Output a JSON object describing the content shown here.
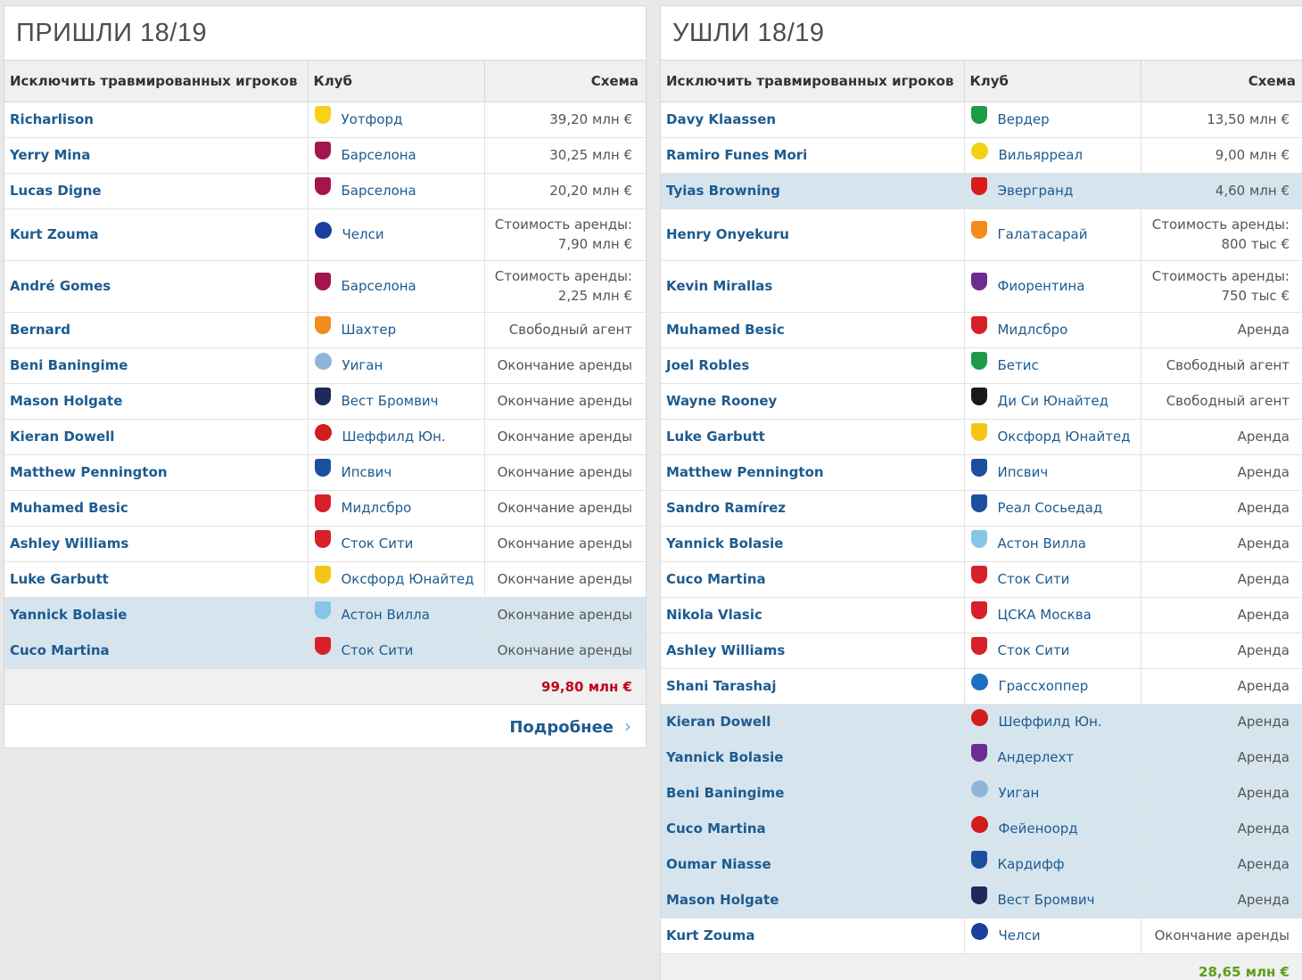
{
  "incoming": {
    "title": "ПРИШЛИ 18/19",
    "headers": [
      "Исключить травмированных игроков",
      "Клуб",
      "Схема"
    ],
    "rows": [
      {
        "player": "Richarlison",
        "club": "Уотфорд",
        "fee": "39,20 млн €",
        "crest": "#f6d21b",
        "hl": false
      },
      {
        "player": "Yerry Mina",
        "club": "Барселона",
        "fee": "30,25 млн €",
        "crest": "#a5154d",
        "hl": false
      },
      {
        "player": "Lucas Digne",
        "club": "Барселона",
        "fee": "20,20 млн €",
        "crest": "#a5154d",
        "hl": false
      },
      {
        "player": "Kurt Zouma",
        "club": "Челси",
        "fee": "Стоимость аренды: 7,90 млн €",
        "crest": "#1a3fa0",
        "hl": false,
        "tall": true,
        "round": true
      },
      {
        "player": "André Gomes",
        "club": "Барселона",
        "fee": "Стоимость аренды: 2,25 млн €",
        "crest": "#a5154d",
        "hl": false,
        "tall": true
      },
      {
        "player": "Bernard",
        "club": "Шахтер",
        "fee": "Свободный агент",
        "crest": "#f28c1a",
        "hl": false
      },
      {
        "player": "Beni Baningime",
        "club": "Уиган",
        "fee": "Окончание аренды",
        "crest": "#8fb6d8",
        "hl": false,
        "round": true
      },
      {
        "player": "Mason Holgate",
        "club": "Вест Бромвич",
        "fee": "Окончание аренды",
        "crest": "#1c2b5a",
        "hl": false
      },
      {
        "player": "Kieran Dowell",
        "club": "Шеффилд Юн.",
        "fee": "Окончание аренды",
        "crest": "#d21d1d",
        "hl": false,
        "round": true
      },
      {
        "player": "Matthew Pennington",
        "club": "Ипсвич",
        "fee": "Окончание аренды",
        "crest": "#1b4fa0",
        "hl": false
      },
      {
        "player": "Muhamed Besic",
        "club": "Мидлсбро",
        "fee": "Окончание аренды",
        "crest": "#d8202a",
        "hl": false
      },
      {
        "player": "Ashley Williams",
        "club": "Сток Сити",
        "fee": "Окончание аренды",
        "crest": "#d8202a",
        "hl": false
      },
      {
        "player": "Luke Garbutt",
        "club": "Оксфорд Юнайтед",
        "fee": "Окончание аренды",
        "crest": "#f3c515",
        "hl": false
      },
      {
        "player": "Yannick Bolasie",
        "club": "Астон Вилла",
        "fee": "Окончание аренды",
        "crest": "#86c5e8",
        "hl": true
      },
      {
        "player": "Cuco Martina",
        "club": "Сток Сити",
        "fee": "Окончание аренды",
        "crest": "#d8202a",
        "hl": true
      }
    ],
    "total": "99,80 млн €",
    "more_label": "Подробнее",
    "more_icon": "chevron-right-icon"
  },
  "outgoing": {
    "title": "УШЛИ 18/19",
    "headers": [
      "Исключить травмированных игроков",
      "Клуб",
      "Схема"
    ],
    "rows": [
      {
        "player": "Davy Klaassen",
        "club": "Вердер",
        "fee": "13,50 млн €",
        "crest": "#1e9b48",
        "hl": false
      },
      {
        "player": "Ramiro Funes Mori",
        "club": "Вильярреал",
        "fee": "9,00 млн €",
        "crest": "#f1d212",
        "hl": false,
        "round": true
      },
      {
        "player": "Tyias Browning",
        "club": "Эвергранд",
        "fee": "4,60 млн €",
        "crest": "#d91b1b",
        "hl": true
      },
      {
        "player": "Henry Onyekuru",
        "club": "Галатасарай",
        "fee": "Стоимость аренды: 800 тыс €",
        "crest": "#f28c1a",
        "hl": false,
        "tall": true
      },
      {
        "player": "Kevin Mirallas",
        "club": "Фиорентина",
        "fee": "Стоимость аренды: 750 тыс €",
        "crest": "#6b2d8f",
        "hl": false,
        "tall": true
      },
      {
        "player": "Muhamed Besic",
        "club": "Мидлсбро",
        "fee": "Аренда",
        "crest": "#d8202a",
        "hl": false
      },
      {
        "player": "Joel Robles",
        "club": "Бетис",
        "fee": "Свободный агент",
        "crest": "#1e9b48",
        "hl": false
      },
      {
        "player": "Wayne Rooney",
        "club": "Ди Си Юнайтед",
        "fee": "Свободный агент",
        "crest": "#1a1a1a",
        "hl": false
      },
      {
        "player": "Luke Garbutt",
        "club": "Оксфорд Юнайтед",
        "fee": "Аренда",
        "crest": "#f3c515",
        "hl": false
      },
      {
        "player": "Matthew Pennington",
        "club": "Ипсвич",
        "fee": "Аренда",
        "crest": "#1b4fa0",
        "hl": false
      },
      {
        "player": "Sandro Ramírez",
        "club": "Реал Сосьедад",
        "fee": "Аренда",
        "crest": "#1b4fa0",
        "hl": false
      },
      {
        "player": "Yannick Bolasie",
        "club": "Астон Вилла",
        "fee": "Аренда",
        "crest": "#86c5e8",
        "hl": false
      },
      {
        "player": "Cuco Martina",
        "club": "Сток Сити",
        "fee": "Аренда",
        "crest": "#d8202a",
        "hl": false
      },
      {
        "player": "Nikola Vlasic",
        "club": "ЦСКА Москва",
        "fee": "Аренда",
        "crest": "#d8202a",
        "hl": false
      },
      {
        "player": "Ashley Williams",
        "club": "Сток Сити",
        "fee": "Аренда",
        "crest": "#d8202a",
        "hl": false
      },
      {
        "player": "Shani Tarashaj",
        "club": "Грассхоппер",
        "fee": "Аренда",
        "crest": "#1b6fc0",
        "hl": false,
        "round": true
      },
      {
        "player": "Kieran Dowell",
        "club": "Шеффилд Юн.",
        "fee": "Аренда",
        "crest": "#d21d1d",
        "hl": true,
        "round": true
      },
      {
        "player": "Yannick Bolasie",
        "club": "Андерлехт",
        "fee": "Аренда",
        "crest": "#6b2d8f",
        "hl": true
      },
      {
        "player": "Beni Baningime",
        "club": "Уиган",
        "fee": "Аренда",
        "crest": "#8fb6d8",
        "hl": true,
        "round": true
      },
      {
        "player": "Cuco Martina",
        "club": "Фейеноорд",
        "fee": "Аренда",
        "crest": "#d21d1d",
        "hl": true,
        "round": true
      },
      {
        "player": "Oumar Niasse",
        "club": "Кардифф",
        "fee": "Аренда",
        "crest": "#1b4fa0",
        "hl": true
      },
      {
        "player": "Mason Holgate",
        "club": "Вест Бромвич",
        "fee": "Аренда",
        "crest": "#1c2b5a",
        "hl": true
      },
      {
        "player": "Kurt Zouma",
        "club": "Челси",
        "fee": "Окончание аренды",
        "crest": "#1a3fa0",
        "hl": false,
        "round": true
      }
    ],
    "total": "28,65 млн €"
  }
}
